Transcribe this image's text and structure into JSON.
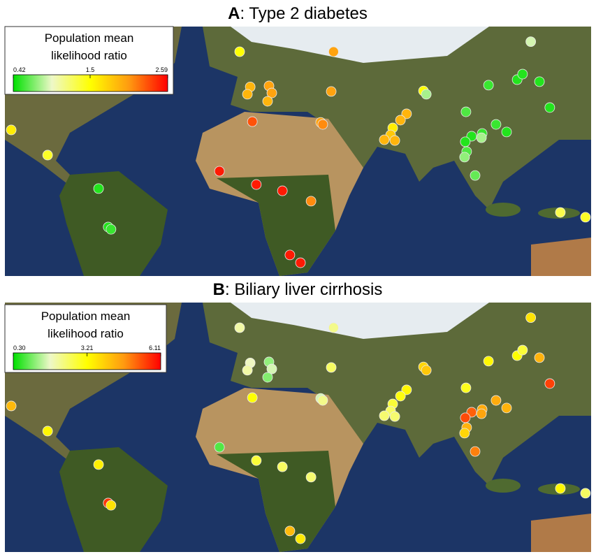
{
  "chart_data": [
    {
      "type": "map",
      "label": "A",
      "title": ": Type 2 diabetes",
      "legend_title": [
        "Population mean",
        "likelihood ratio"
      ],
      "clim": [
        0.42,
        2.59
      ],
      "cticks": [
        0.42,
        1.5,
        2.59
      ],
      "colormap": [
        "#00e000",
        "#eef8c8",
        "#ffff00",
        "#ff9a10",
        "#ff0000"
      ],
      "lon": [
        0,
        40,
        124,
        4.5,
        12.5,
        3.3,
        13.7,
        11.9,
        39,
        78.3,
        79.5,
        106,
        118.2,
        120.5,
        127.7,
        132.1,
        96.4,
        109.2,
        103.3,
        98.8,
        96.1,
        113.7,
        103,
        96.7,
        95.8,
        100.3,
        71.1,
        68.5,
        65.2,
        64.3,
        61.6,
        66.1,
        34.5,
        35.4,
        5.4,
        -97.3,
        -81.8,
        -60.1,
        -56,
        -54.8,
        -8.6,
        7.1,
        18.2,
        30.4,
        21.4,
        25.9,
        136.6,
        147.3
      ],
      "lat": [
        62,
        62,
        66,
        48,
        48.4,
        45.1,
        45.6,
        42.3,
        46.2,
        46.4,
        45.1,
        48.7,
        50.9,
        53.1,
        50.1,
        39.8,
        38.1,
        33.1,
        29.5,
        28.4,
        26.2,
        30.1,
        27.8,
        22.3,
        20.1,
        12.8,
        37.3,
        34.8,
        31.7,
        28.9,
        27,
        26.7,
        33.9,
        33.1,
        34.2,
        30.9,
        20.9,
        7.6,
        -7.7,
        -8.6,
        14.5,
        9.2,
        6.7,
        2.6,
        -18.8,
        -21.9,
        -1.9,
        -3.8
      ],
      "values": [
        1.5,
        2.0,
        0.9,
        1.9,
        2.0,
        1.9,
        2.0,
        1.9,
        2.0,
        1.5,
        0.8,
        0.55,
        0.5,
        0.5,
        0.5,
        0.5,
        0.6,
        0.55,
        0.55,
        0.5,
        0.5,
        0.5,
        0.8,
        0.6,
        0.75,
        0.65,
        1.9,
        1.9,
        1.6,
        1.8,
        1.9,
        1.9,
        2.0,
        2.1,
        2.3,
        1.6,
        1.4,
        0.5,
        0.5,
        0.55,
        2.5,
        2.5,
        2.5,
        2.1,
        2.5,
        2.5,
        1.3,
        1.4
      ]
    },
    {
      "type": "map",
      "label": "B",
      "title": ": Biliary liver cirrhosis",
      "legend_title": [
        "Population mean",
        "likelihood ratio"
      ],
      "clim": [
        0.3,
        6.11
      ],
      "cticks": [
        {
          "value": 0.3,
          "label": "0.30"
        },
        3.21,
        6.11
      ],
      "colormap": [
        "#00e000",
        "#eef8c8",
        "#ffff00",
        "#ff9a10",
        "#ff0000"
      ],
      "lon": [
        0,
        40,
        124,
        4.5,
        12.5,
        3.3,
        13.7,
        11.9,
        39,
        78.3,
        79.5,
        106,
        118.2,
        120.5,
        127.7,
        132.1,
        96.4,
        109.2,
        103.3,
        98.8,
        96.1,
        113.7,
        103,
        96.7,
        95.8,
        100.3,
        71.1,
        68.5,
        65.2,
        64.3,
        61.6,
        66.1,
        34.5,
        35.4,
        5.4,
        -97.3,
        -81.8,
        -60.1,
        -56,
        -54.8,
        -8.6,
        7.1,
        18.2,
        30.4,
        21.4,
        25.9,
        136.6,
        147.3
      ],
      "lat": [
        62,
        62,
        66,
        48,
        48.4,
        45.1,
        45.6,
        42.3,
        46.2,
        46.4,
        45.1,
        48.7,
        50.9,
        53.1,
        50.1,
        39.8,
        38.1,
        33.1,
        29.5,
        28.4,
        26.2,
        30.1,
        27.8,
        22.3,
        20.1,
        12.8,
        37.3,
        34.8,
        31.7,
        28.9,
        27,
        26.7,
        33.9,
        33.1,
        34.2,
        30.9,
        20.9,
        7.6,
        -7.7,
        -8.6,
        14.5,
        9.2,
        6.7,
        2.6,
        -18.8,
        -21.9,
        -1.9,
        -3.8
      ],
      "values": [
        2.0,
        2.2,
        3.6,
        1.8,
        1.2,
        2.0,
        1.6,
        1.1,
        2.5,
        3.8,
        4.0,
        3.3,
        3.2,
        2.8,
        4.3,
        5.5,
        3.0,
        4.4,
        4.4,
        5.2,
        5.4,
        4.3,
        4.5,
        4.3,
        3.8,
        4.9,
        3.3,
        3.1,
        2.8,
        2.5,
        2.4,
        2.4,
        1.6,
        2.2,
        3.2,
        4.2,
        3.3,
        3.4,
        5.6,
        3.6,
        0.8,
        2.8,
        2.5,
        2.4,
        4.2,
        3.5,
        3.3,
        2.5
      ]
    }
  ]
}
